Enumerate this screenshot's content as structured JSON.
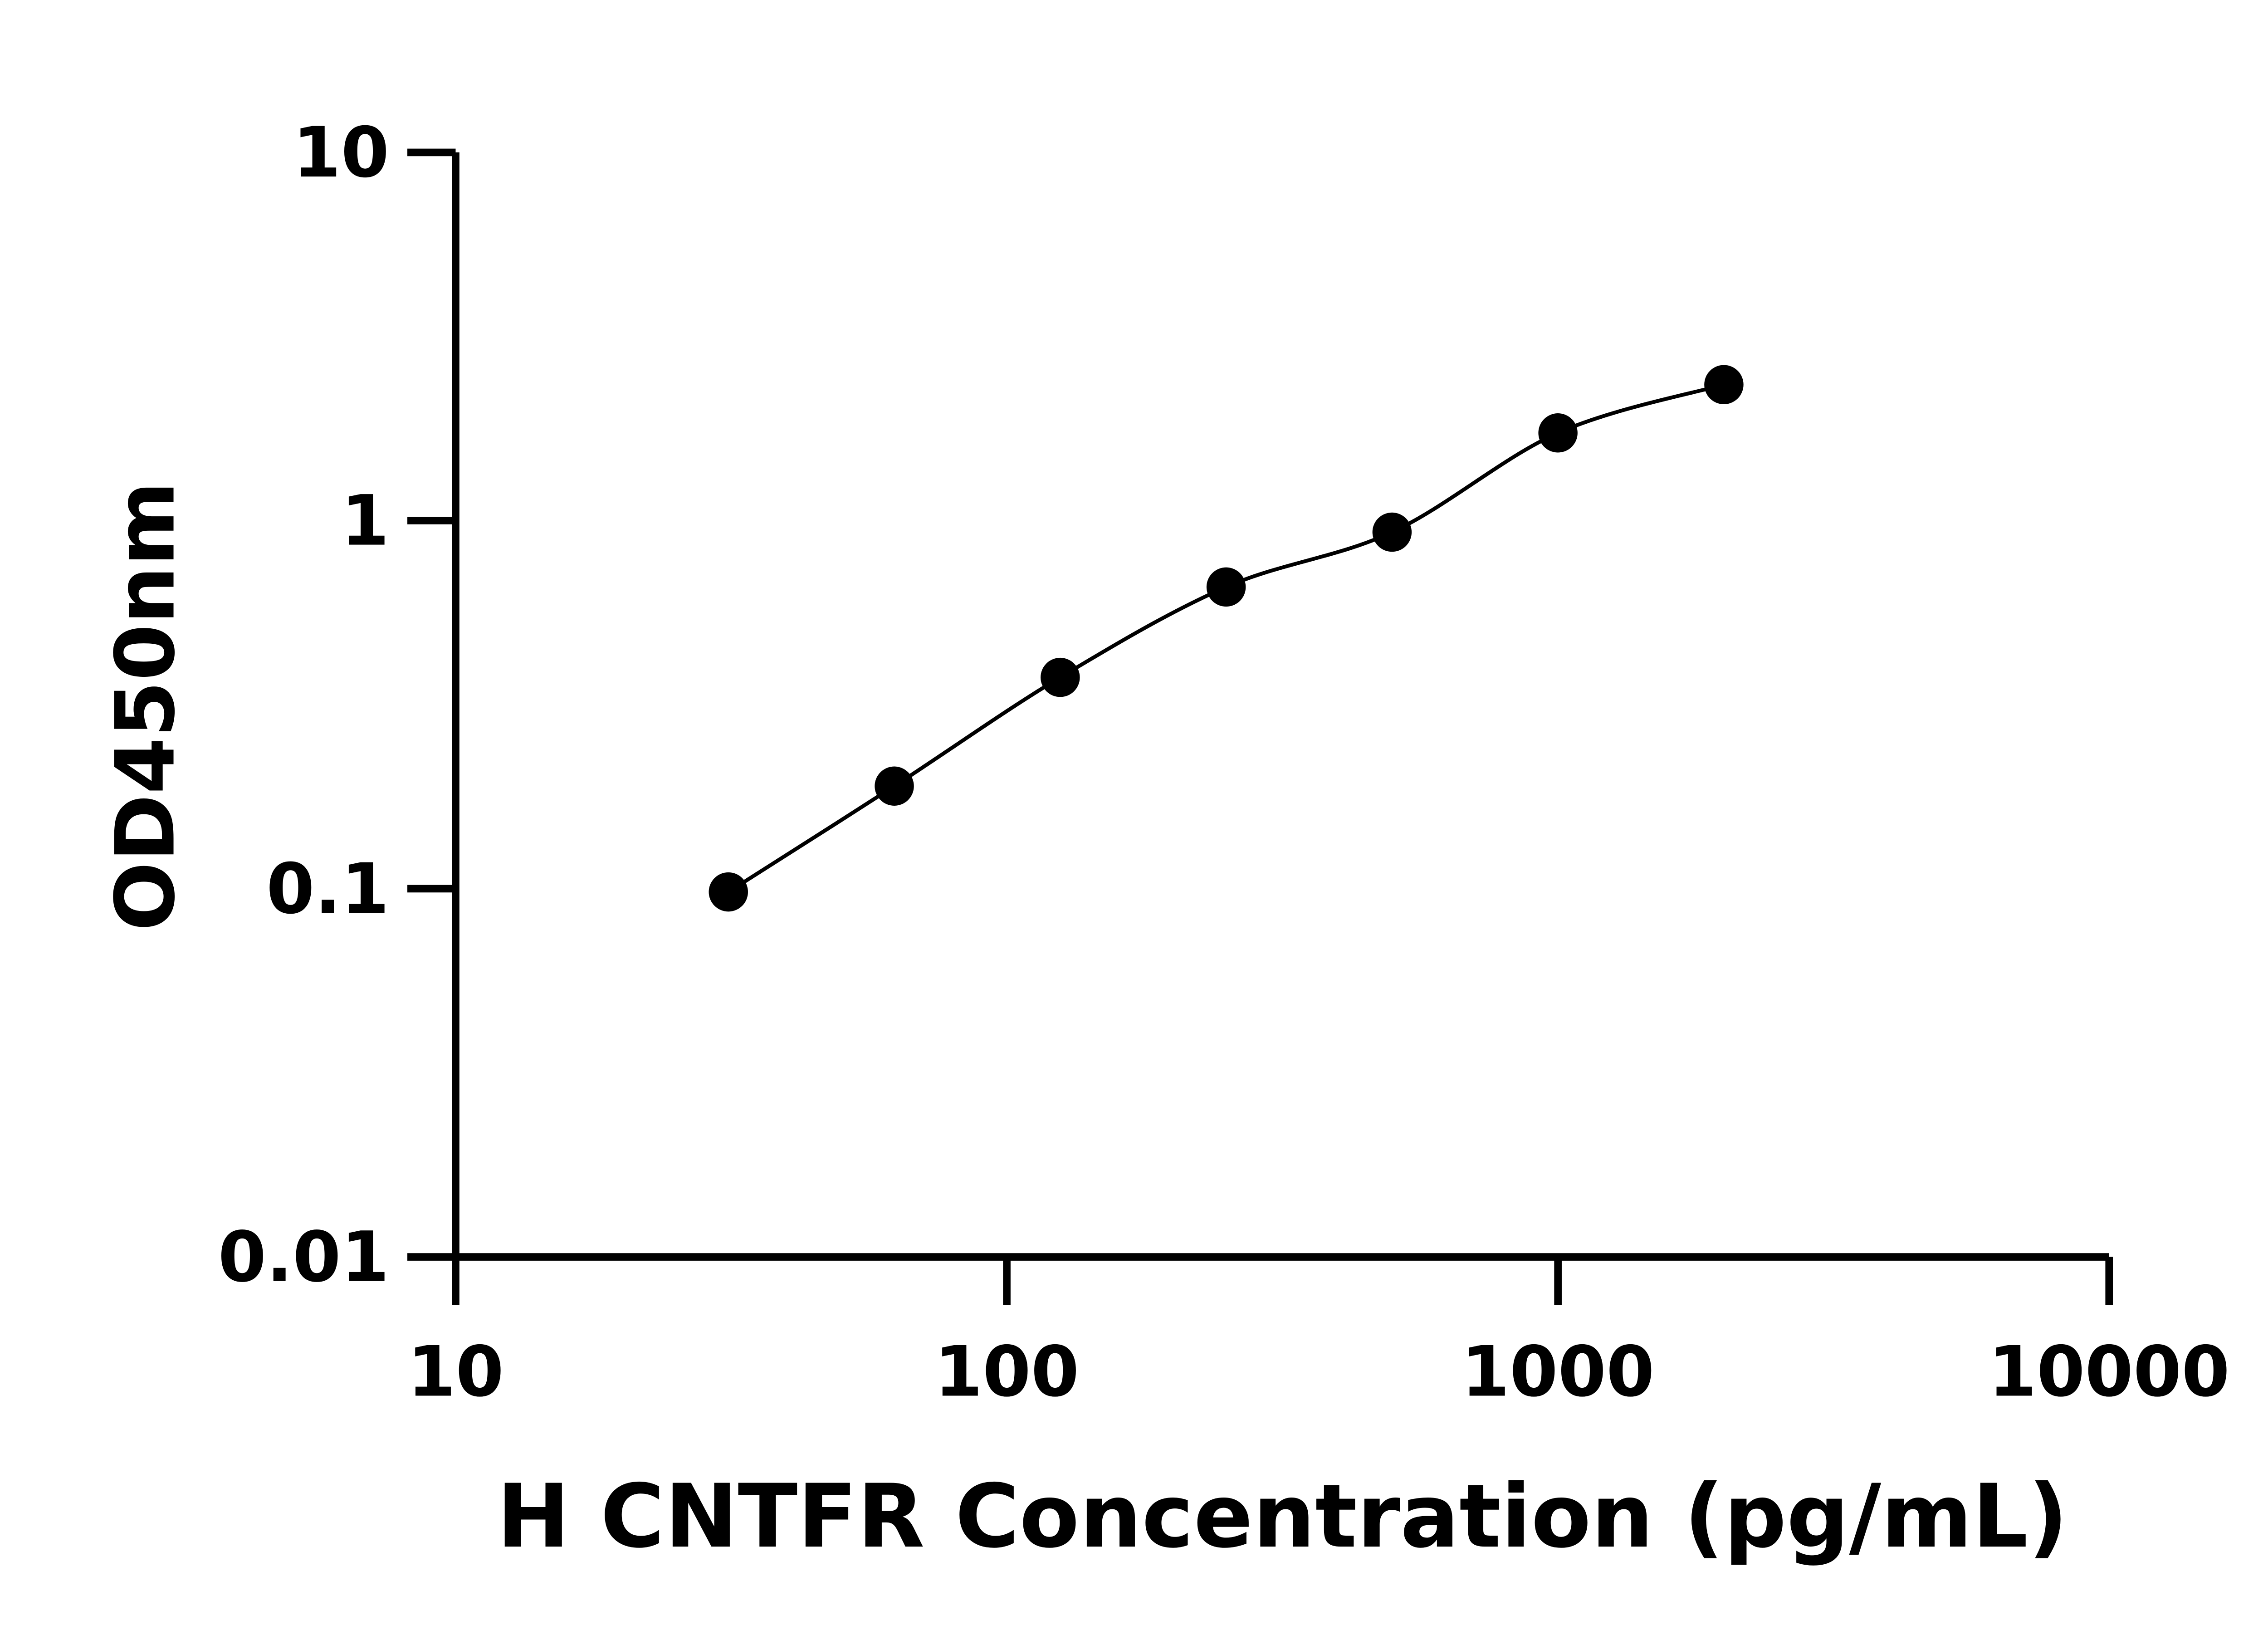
{
  "chart_data": {
    "type": "scatter",
    "x_label": "H CNTFR Concentration (pg/mL)",
    "y_label": "OD450nm",
    "xscale": "log",
    "yscale": "log",
    "xlim": [
      10,
      10000
    ],
    "xticks": [
      10,
      100,
      1000,
      10000
    ],
    "ylim": [
      0.01,
      10
    ],
    "yticks": [
      0.01,
      0.1,
      1,
      10
    ],
    "fit_line": true,
    "series": [
      {
        "color": "#000000",
        "x": [
          31.25,
          62.5,
          125,
          250,
          500,
          1000,
          2000
        ],
        "values": [
          0.098,
          0.19,
          0.375,
          0.66,
          0.93,
          1.73,
          2.34
        ]
      }
    ]
  }
}
